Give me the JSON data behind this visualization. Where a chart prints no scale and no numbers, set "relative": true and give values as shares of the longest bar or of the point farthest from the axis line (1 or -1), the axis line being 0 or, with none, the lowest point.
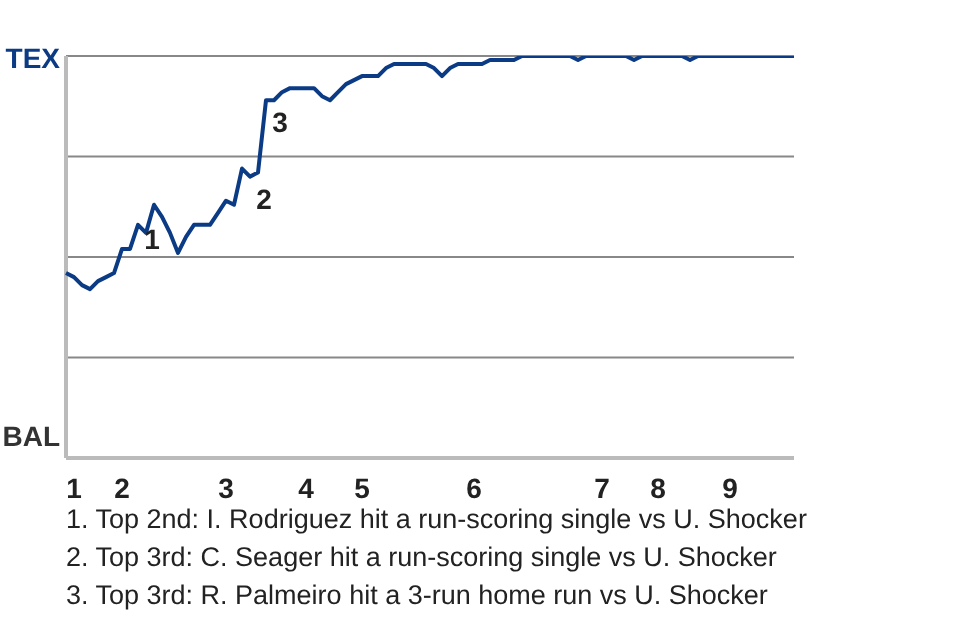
{
  "chart_data": {
    "type": "line",
    "relative": true,
    "categories": [
      null,
      "1",
      null,
      null,
      null,
      null,
      null,
      "2",
      null,
      null,
      null,
      null,
      null,
      null,
      null,
      null,
      null,
      null,
      null,
      null,
      "3",
      null,
      null,
      null,
      null,
      null,
      null,
      null,
      null,
      null,
      "4",
      null,
      null,
      null,
      null,
      null,
      null,
      "5",
      null,
      null,
      null,
      null,
      null,
      null,
      null,
      null,
      null,
      null,
      null,
      null,
      null,
      "6",
      null,
      null,
      null,
      null,
      null,
      null,
      null,
      null,
      null,
      null,
      null,
      null,
      null,
      null,
      null,
      "7",
      null,
      null,
      null,
      null,
      null,
      null,
      "8",
      null,
      null,
      null,
      null,
      null,
      null,
      null,
      null,
      "9",
      null,
      null,
      null,
      null,
      null,
      null,
      null,
      null
    ],
    "series": [
      {
        "color": "#0b3b85",
        "values": [
          0.46,
          0.45,
          0.43,
          0.42,
          0.44,
          0.45,
          0.46,
          0.52,
          0.52,
          0.58,
          0.56,
          0.63,
          0.6,
          0.56,
          0.51,
          0.55,
          0.58,
          0.58,
          0.58,
          0.61,
          0.64,
          0.63,
          0.72,
          0.7,
          0.71,
          0.89,
          0.89,
          0.91,
          0.92,
          0.92,
          0.92,
          0.92,
          0.9,
          0.89,
          0.91,
          0.93,
          0.94,
          0.95,
          0.95,
          0.95,
          0.97,
          0.98,
          0.98,
          0.98,
          0.98,
          0.98,
          0.97,
          0.95,
          0.97,
          0.98,
          0.98,
          0.98,
          0.98,
          0.99,
          0.99,
          0.99,
          0.99,
          1,
          1,
          1,
          1,
          1,
          1,
          1,
          0.99,
          1,
          1,
          1,
          1,
          1,
          1,
          0.99,
          1,
          1,
          1,
          1,
          1,
          1,
          0.99,
          1,
          1,
          1,
          1,
          1,
          1,
          1,
          1,
          1,
          1,
          1,
          1,
          1
        ],
        "name": null
      }
    ],
    "grid": "y",
    "marker": "none",
    "line_style": "solid",
    "annotations": [
      "TEX",
      "BAL",
      {
        "text": "1",
        "y": 0.6
      },
      {
        "text": "2",
        "y": 0.7
      },
      {
        "text": "3",
        "y": 0.89
      },
      "1. Top 2nd: I. Rodriguez hit a run-scoring single vs U. Shocker",
      "2. Top 3rd: C. Seager hit a run-scoring single vs U. Shocker",
      "3. Top 3rd: R. Palmeiro hit a 3-run home run vs U. Shocker"
    ]
  }
}
